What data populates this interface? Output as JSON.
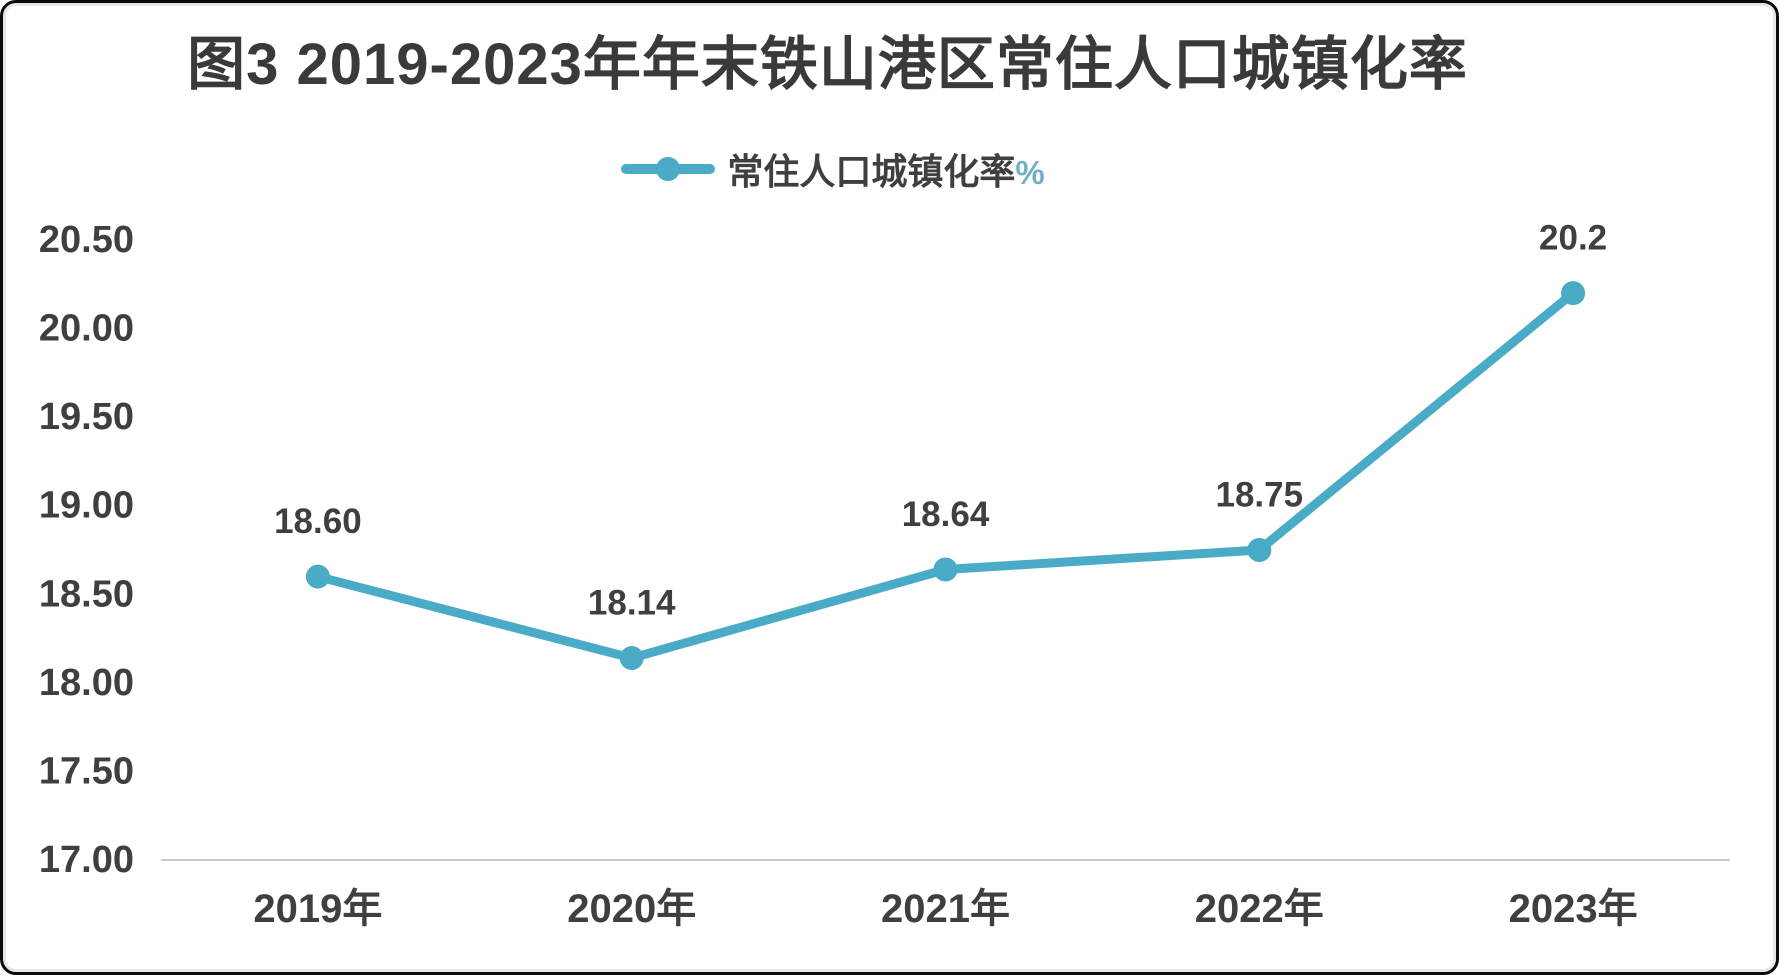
{
  "window": {
    "background_color": "#ffffff",
    "frame_border_color": "#0a0a0a"
  },
  "header": {
    "title": "图3 2019-2023年年末铁山港区常住人口城镇化率"
  },
  "legend": {
    "label": "常住人口城镇化率",
    "suffix": "%",
    "marker_color": "#4aabc7",
    "icon": "line-with-dot-icon"
  },
  "chart_data": {
    "type": "line",
    "title": "图3 2019-2023年年末铁山港区常住人口城镇化率",
    "legend_entries": [
      "常住人口城镇化率%"
    ],
    "legend_position": "top",
    "categories": [
      "2019年",
      "2020年",
      "2021年",
      "2022年",
      "2023年"
    ],
    "series": [
      {
        "name": "常住人口城镇化率%",
        "values": [
          18.6,
          18.14,
          18.64,
          18.75,
          20.2
        ],
        "data_labels": [
          "18.60",
          "18.14",
          "18.64",
          "18.75",
          "20.2"
        ],
        "color": "#4aabc7"
      }
    ],
    "xlabel": "",
    "ylabel": "",
    "ylim": [
      17.0,
      20.5
    ],
    "ytick_step": 0.5,
    "yticks": [
      "17.00",
      "17.50",
      "18.00",
      "18.50",
      "19.00",
      "19.50",
      "20.00",
      "20.50"
    ],
    "grid": false,
    "axis_line_color": "#c9c9c9",
    "text_color": "#3f3f3f"
  }
}
